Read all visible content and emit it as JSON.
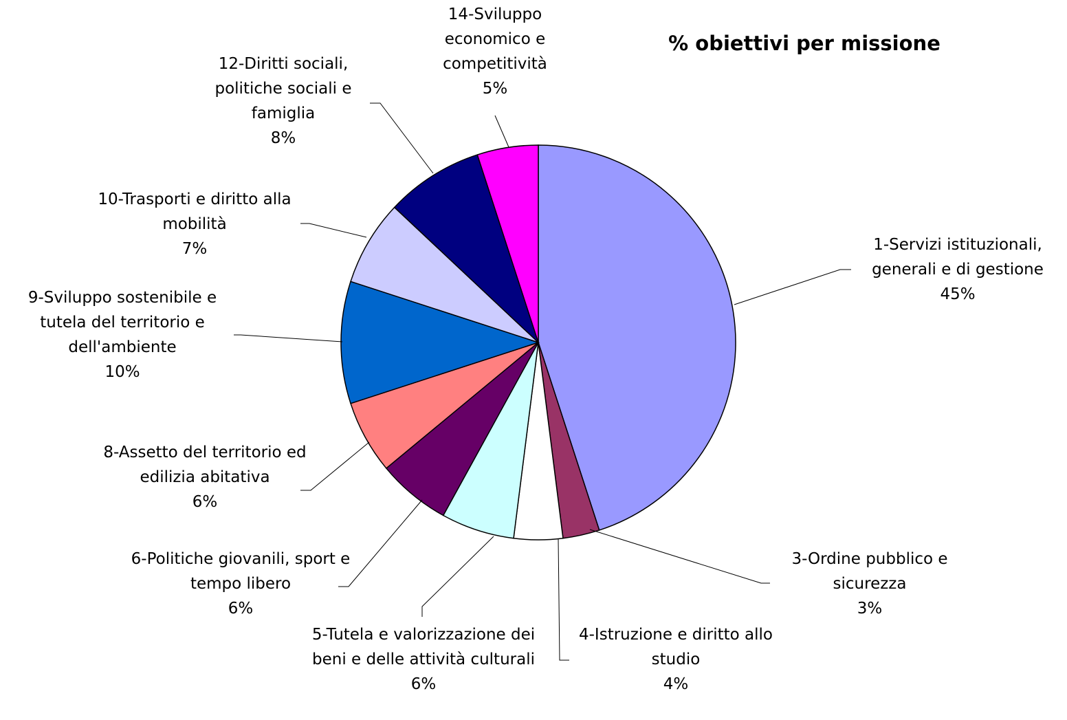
{
  "chart_data": {
    "type": "pie",
    "title": "% obiettivi per missione",
    "categories": [
      "1-Servizi istituzionali, generali e di gestione",
      "3-Ordine pubblico e sicurezza",
      "4-Istruzione e diritto allo studio",
      "5-Tutela e valorizzazione dei beni e delle attività culturali",
      "6-Politiche giovanili, sport e tempo libero",
      "8-Assetto del territorio ed edilizia abitativa",
      "9-Sviluppo sostenibile e tutela del territorio e dell'ambiente",
      "10-Trasporti e diritto alla mobilità",
      "12-Diritti sociali, politiche sociali e famiglia",
      "14-Sviluppo economico e competitività"
    ],
    "values": [
      45,
      3,
      4,
      6,
      6,
      6,
      10,
      7,
      8,
      5
    ],
    "value_labels": [
      "45%",
      "3%",
      "4%",
      "6%",
      "6%",
      "6%",
      "10%",
      "7%",
      "8%",
      "5%"
    ],
    "colors": [
      "#9999ff",
      "#993366",
      "#ffffff",
      "#ccffff",
      "#660066",
      "#ff8080",
      "#0066cc",
      "#ccccff",
      "#000080",
      "#ff00ff"
    ]
  }
}
